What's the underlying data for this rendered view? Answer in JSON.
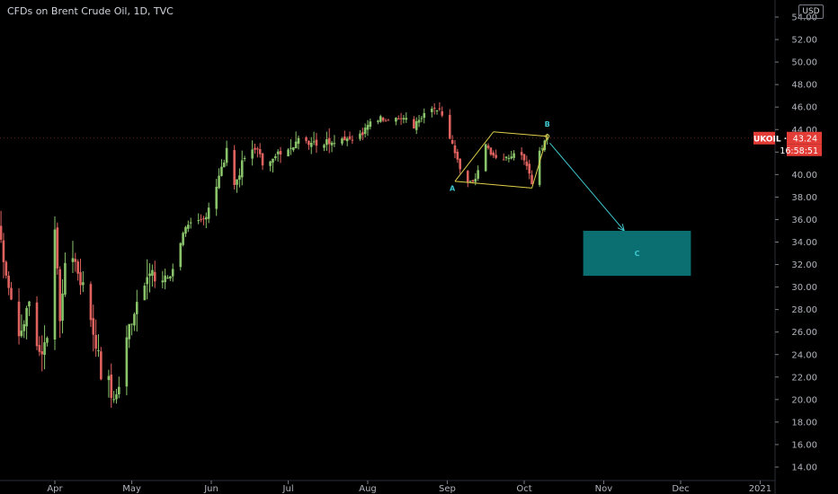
{
  "header": {
    "title": "CFDs on Brent Crude Oil, 1D, TVC",
    "currency": "USD"
  },
  "price_tag": {
    "symbol": "UKOIL",
    "price": "43.24",
    "countdown": "16:58:51",
    "value": 43.24
  },
  "colors": {
    "background": "#000000",
    "up": "#89c46a",
    "down": "#e0625f",
    "axis_text": "#b2b5be",
    "tag": "#e33b36",
    "pattern_line": "#e0d14a",
    "arrow": "#3fc8d0",
    "target_box": "#0b6f72",
    "labels": "#3fc8d0"
  },
  "chart_data": {
    "type": "candlestick",
    "title": "CFDs on Brent Crude Oil, 1D, TVC",
    "ylim": [
      13,
      55
    ],
    "y_ticks": [
      "14.00",
      "16.00",
      "18.00",
      "20.00",
      "22.00",
      "24.00",
      "26.00",
      "28.00",
      "30.00",
      "32.00",
      "34.00",
      "36.00",
      "38.00",
      "40.00",
      "42.00",
      "44.00",
      "46.00",
      "48.00",
      "50.00",
      "52.00",
      "54.00"
    ],
    "x_ticks": [
      "Apr",
      "May",
      "Jun",
      "Jul",
      "Aug",
      "Sep",
      "Oct",
      "Nov",
      "Dec",
      "2021"
    ],
    "x_tick_days": [
      0,
      30,
      61,
      91,
      122,
      153,
      183,
      214,
      244,
      275
    ],
    "series_start_day": -22,
    "anchors": [
      [
        -22,
        35.5
      ],
      [
        -18,
        30.0
      ],
      [
        -14,
        25.5
      ],
      [
        -10,
        28.5
      ],
      [
        -6,
        24.0
      ],
      [
        -3,
        25.5
      ],
      [
        0,
        34.5
      ],
      [
        2,
        27.5
      ],
      [
        5,
        33.5
      ],
      [
        9,
        31.5
      ],
      [
        13,
        28.0
      ],
      [
        17,
        24.0
      ],
      [
        19,
        20.0
      ],
      [
        21,
        21.5
      ],
      [
        23,
        19.5
      ],
      [
        26,
        22.5
      ],
      [
        29,
        26.5
      ],
      [
        33,
        29.5
      ],
      [
        37,
        31.0
      ],
      [
        41,
        30.5
      ],
      [
        45,
        31.0
      ],
      [
        50,
        35.0
      ],
      [
        54,
        35.5
      ],
      [
        58,
        36.0
      ],
      [
        63,
        39.0
      ],
      [
        67,
        42.0
      ],
      [
        70,
        39.0
      ],
      [
        74,
        41.5
      ],
      [
        78,
        42.5
      ],
      [
        82,
        40.5
      ],
      [
        86,
        41.5
      ],
      [
        90,
        42.5
      ],
      [
        95,
        43.0
      ],
      [
        100,
        43.0
      ],
      [
        105,
        42.8
      ],
      [
        110,
        43.3
      ],
      [
        115,
        43.2
      ],
      [
        120,
        43.6
      ],
      [
        124,
        45.0
      ],
      [
        130,
        45.0
      ],
      [
        136,
        45.0
      ],
      [
        140,
        44.3
      ],
      [
        145,
        45.5
      ],
      [
        150,
        45.8
      ],
      [
        155,
        42.5
      ],
      [
        158,
        40.5
      ],
      [
        161,
        39.3
      ],
      [
        164,
        39.5
      ],
      [
        168,
        42.5
      ],
      [
        172,
        41.5
      ],
      [
        176,
        41.5
      ],
      [
        180,
        42.0
      ],
      [
        184,
        41.0
      ],
      [
        186,
        39.3
      ],
      [
        189,
        42.0
      ],
      [
        192,
        43.24
      ]
    ],
    "pattern": {
      "channel": [
        [
          [
            156,
            39.4
          ],
          [
            171,
            43.8
          ]
        ],
        [
          [
            171,
            43.8
          ],
          [
            192,
            43.4
          ]
        ],
        [
          [
            192,
            43.4
          ],
          [
            186,
            38.8
          ]
        ],
        [
          [
            186,
            38.8
          ],
          [
            156,
            39.4
          ]
        ]
      ],
      "arrow": [
        [
          193,
          42.8
        ],
        [
          222,
          35.0
        ]
      ],
      "target_box": {
        "x": [
          206,
          248
        ],
        "y": [
          31.0,
          35.0
        ]
      },
      "labels": [
        {
          "text": "A",
          "day": 155,
          "price": 38.8
        },
        {
          "text": "B",
          "day": 192,
          "price": 44.5
        },
        {
          "text": "C",
          "day": 227,
          "price": 33.0
        }
      ]
    }
  }
}
